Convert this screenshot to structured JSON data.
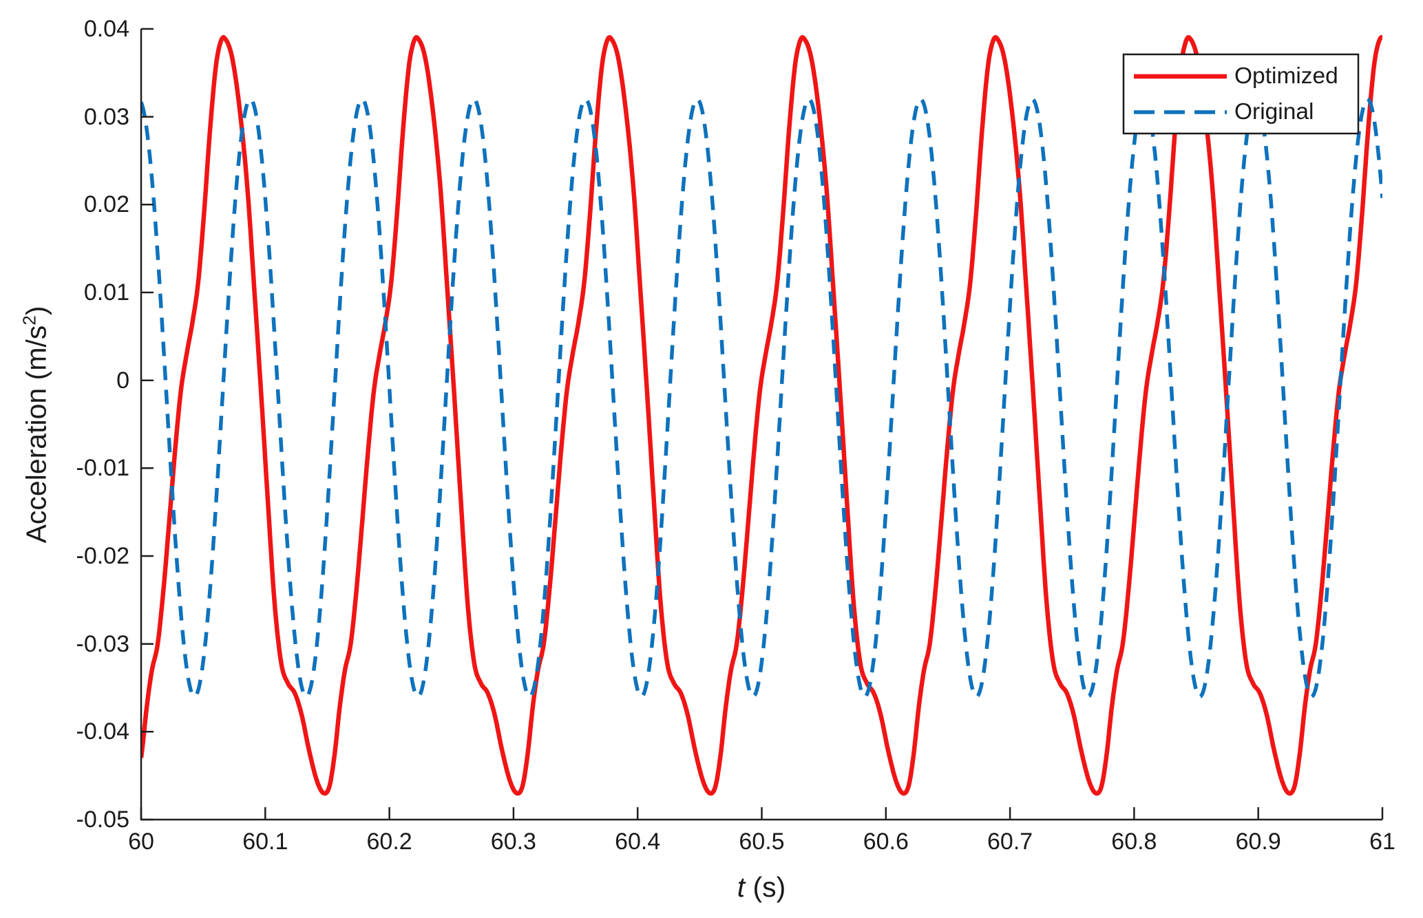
{
  "figure": {
    "background": "#ffffff",
    "axis_color": "#1f1f1f",
    "xlabel_italic": "t",
    "xlabel_unit": " (s)",
    "ylabel_prefix": "Acceleration (m/s",
    "ylabel_sup": "2",
    "ylabel_suffix": ")"
  },
  "legend": {
    "position": "northeast",
    "border_color": "#1a1a1a",
    "background": "#ffffff",
    "entries": [
      "Optimized",
      "Original"
    ]
  },
  "chart_data": {
    "type": "line",
    "title": "",
    "xlabel": "t (s)",
    "ylabel": "Acceleration (m/s^2)",
    "xlim": [
      60,
      61
    ],
    "ylim": [
      -0.05,
      0.04
    ],
    "grid": false,
    "xtick_values": [
      60,
      60.1,
      60.2,
      60.3,
      60.4,
      60.5,
      60.6,
      60.7,
      60.8,
      60.9,
      61
    ],
    "xtick_labels": [
      "60",
      "60.1",
      "60.2",
      "60.3",
      "60.4",
      "60.5",
      "60.6",
      "60.7",
      "60.8",
      "60.9",
      "61"
    ],
    "ytick_values": [
      -0.05,
      -0.04,
      -0.03,
      -0.02,
      -0.01,
      0,
      0.01,
      0.02,
      0.03,
      0.04
    ],
    "ytick_labels": [
      "-0.05",
      "-0.04",
      "-0.03",
      "-0.02",
      "-0.01",
      "0",
      "0.01",
      "0.02",
      "0.03",
      "0.04"
    ],
    "series": [
      {
        "name": "Optimized",
        "color": "#f01515",
        "style": "solid",
        "line_width": 6.5,
        "model": "periodic_samples",
        "period_s": 0.1555,
        "peak_time_s": 60.067,
        "max": 0.039,
        "min": -0.047,
        "one_period_phase_value": [
          [
            0.0,
            0.039
          ],
          [
            0.04,
            0.0368
          ],
          [
            0.08,
            0.0308
          ],
          [
            0.12,
            0.0218
          ],
          [
            0.155,
            0.0105
          ],
          [
            0.19,
            -0.0012
          ],
          [
            0.225,
            -0.0135
          ],
          [
            0.26,
            -0.0252
          ],
          [
            0.295,
            -0.0322
          ],
          [
            0.33,
            -0.0345
          ],
          [
            0.365,
            -0.0356
          ],
          [
            0.4,
            -0.038
          ],
          [
            0.44,
            -0.0422
          ],
          [
            0.48,
            -0.0456
          ],
          [
            0.515,
            -0.047
          ],
          [
            0.545,
            -0.0462
          ],
          [
            0.572,
            -0.0425
          ],
          [
            0.598,
            -0.0372
          ],
          [
            0.625,
            -0.033
          ],
          [
            0.655,
            -0.03
          ],
          [
            0.685,
            -0.0238
          ],
          [
            0.715,
            -0.016
          ],
          [
            0.745,
            -0.008
          ],
          [
            0.775,
            -0.0012
          ],
          [
            0.805,
            0.003
          ],
          [
            0.835,
            0.0066
          ],
          [
            0.865,
            0.0112
          ],
          [
            0.895,
            0.019
          ],
          [
            0.925,
            0.0282
          ],
          [
            0.955,
            0.0355
          ],
          [
            0.978,
            0.0383
          ]
        ]
      },
      {
        "name": "Original",
        "color": "#0e72bd",
        "style": "dashed",
        "dash_pattern": [
          21,
          14
        ],
        "line_width": 5.5,
        "model": "cosine",
        "mean": -0.002,
        "amplitude": 0.034,
        "period_s": 0.09,
        "peak_time_s": 59.998,
        "max": 0.032,
        "min": -0.036
      }
    ]
  }
}
